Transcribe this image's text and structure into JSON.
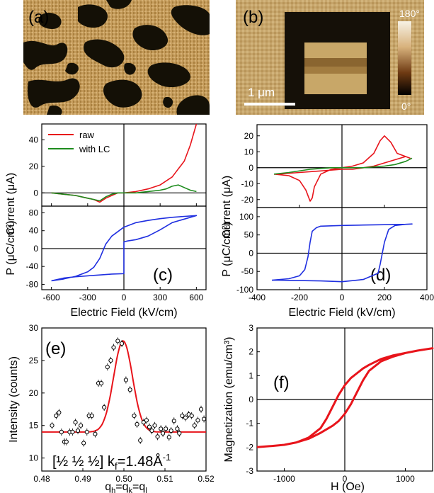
{
  "panels": {
    "a": {
      "label": "(a)"
    },
    "b": {
      "label": "(b)",
      "scalebar": "1 μm",
      "colorbar_max": "180°",
      "colorbar_min": "0°"
    },
    "c": {
      "label": "(c)"
    },
    "d": {
      "label": "(d)"
    },
    "e": {
      "label": "(e)"
    },
    "f": {
      "label": "(f)"
    }
  },
  "chart_data": [
    {
      "panel": "c-top",
      "type": "line",
      "ylabel": "Current (μA)",
      "x_ticks": [
        -600,
        -300,
        0,
        300,
        600
      ],
      "y_ticks": [
        0,
        20,
        40
      ],
      "xlim": [
        -680,
        680
      ],
      "ylim": [
        -10,
        52
      ],
      "colors": {
        "raw": "#e8141b",
        "with LC": "#1e8c1e"
      },
      "series": [
        {
          "name": "raw",
          "x": [
            -600,
            -500,
            -400,
            -300,
            -250,
            -200,
            -150,
            -100,
            -50,
            0,
            50,
            100,
            200,
            300,
            400,
            500,
            550,
            600
          ],
          "y": [
            0,
            -1,
            -2,
            -4,
            -5,
            -7,
            -4,
            -2,
            0,
            0,
            0.5,
            1,
            3,
            6,
            12,
            24,
            36,
            52
          ]
        },
        {
          "name": "with LC",
          "x": [
            -600,
            -500,
            -400,
            -300,
            -250,
            -200,
            -150,
            -100,
            -50,
            0,
            100,
            200,
            300,
            350,
            400,
            450,
            500,
            550,
            600
          ],
          "y": [
            0,
            -1,
            -2,
            -4,
            -5,
            -6,
            -3,
            -1,
            0,
            0,
            0,
            1,
            2,
            3,
            5,
            6,
            4,
            2,
            1
          ]
        }
      ]
    },
    {
      "panel": "c-bottom",
      "type": "line",
      "ylabel": "P (μC/cm²)",
      "xlabel": "Electric Field (kV/cm)",
      "x_ticks": [
        -600,
        -300,
        0,
        300,
        600
      ],
      "y_ticks": [
        -80,
        -40,
        0,
        40,
        80
      ],
      "xlim": [
        -680,
        680
      ],
      "ylim": [
        -92,
        95
      ],
      "colors": {
        "loop": "#1f2fe0"
      },
      "series": [
        {
          "name": "",
          "x": [
            -600,
            -500,
            -400,
            -300,
            -250,
            -200,
            -150,
            -100,
            0,
            100,
            200,
            300,
            400,
            500,
            600,
            500,
            400,
            300,
            200,
            100,
            30,
            0,
            0,
            -100,
            -200,
            -300,
            -400,
            -500,
            -600
          ],
          "y": [
            -72,
            -68,
            -62,
            -52,
            -42,
            -22,
            10,
            28,
            48,
            58,
            63,
            67,
            70,
            72,
            74,
            66,
            58,
            42,
            28,
            20,
            17,
            15,
            -56,
            -57,
            -59,
            -61,
            -63,
            -66,
            -72
          ]
        }
      ]
    },
    {
      "panel": "d-top",
      "type": "line",
      "ylabel": "Current (μA)",
      "x_ticks": [
        -400,
        -200,
        0,
        200,
        400
      ],
      "y_ticks": [
        -20,
        -10,
        0,
        10,
        20
      ],
      "xlim": [
        -400,
        400
      ],
      "ylim": [
        -25,
        27
      ],
      "colors": {
        "red": "#e8141b",
        "green": "#1e8c1e"
      },
      "series": [
        {
          "name": "",
          "x": [
            -320,
            -250,
            -200,
            -170,
            -150,
            -140,
            -130,
            -100,
            -50,
            0,
            50,
            100,
            150,
            180,
            200,
            230,
            260,
            300,
            320,
            300,
            250,
            200,
            150,
            100,
            50,
            0,
            -100,
            -200,
            -300,
            -320
          ],
          "y": [
            -4,
            -5,
            -8,
            -14,
            -21,
            -19,
            -12,
            -4,
            -1,
            0,
            1,
            3,
            9,
            17,
            20,
            16,
            9,
            7,
            6,
            7,
            5,
            3,
            1,
            0,
            -1,
            -1,
            -2,
            -3,
            -4,
            -4
          ]
        },
        {
          "name": "",
          "x": [
            -320,
            -250,
            -150,
            -50,
            0,
            100,
            200,
            250,
            300,
            330
          ],
          "y": [
            -4,
            -3,
            -1,
            0,
            0,
            0,
            1,
            2,
            4,
            6
          ]
        }
      ]
    },
    {
      "panel": "d-bottom",
      "type": "line",
      "ylabel": "P (μC/cm²)",
      "xlabel": "Electric Field (kV/cm)",
      "x_ticks": [
        -400,
        -200,
        0,
        200,
        400
      ],
      "y_ticks": [
        -100,
        -50,
        0,
        50,
        100
      ],
      "xlim": [
        -400,
        400
      ],
      "ylim": [
        -100,
        125
      ],
      "colors": {
        "loop": "#1f2fe0"
      },
      "series": [
        {
          "name": "",
          "x": [
            -330,
            -250,
            -200,
            -175,
            -160,
            -150,
            -140,
            -120,
            -100,
            0,
            100,
            200,
            300,
            330,
            300,
            250,
            220,
            200,
            190,
            180,
            170,
            100,
            0,
            -100,
            -200,
            -300,
            -330
          ],
          "y": [
            -74,
            -70,
            -62,
            -45,
            -10,
            30,
            60,
            70,
            74,
            76,
            77,
            78,
            79,
            80,
            79,
            76,
            65,
            30,
            0,
            -30,
            -55,
            -72,
            -78,
            -76,
            -75,
            -74,
            -74
          ]
        }
      ]
    },
    {
      "panel": "e",
      "type": "scatter",
      "ylabel": "Intensity (counts)",
      "xlabel": "q_h=q_k=q_l",
      "x_tick_labels": [
        "0.48",
        "0.49",
        "0.50",
        "0.51",
        "0.52"
      ],
      "y_tick_labels": [
        "10",
        "15",
        "20",
        "25",
        "30"
      ],
      "annotation": "[½ ½ ½] k",
      "annotation_sub": "f",
      "annotation_rest": "=1.48Å",
      "annotation_sup": "-1",
      "xlim": [
        0.48,
        0.52
      ],
      "ylim": [
        8,
        30
      ],
      "colors": {
        "fit": "#e8141b",
        "points": "#000000"
      },
      "points": {
        "x": [
          0.4825,
          0.4835,
          0.4842,
          0.4848,
          0.4855,
          0.486,
          0.4868,
          0.4875,
          0.4882,
          0.4888,
          0.4895,
          0.4902,
          0.491,
          0.4915,
          0.4922,
          0.493,
          0.4938,
          0.4945,
          0.4952,
          0.496,
          0.4968,
          0.4975,
          0.4985,
          0.4995,
          0.5005,
          0.5015,
          0.5025,
          0.5032,
          0.504,
          0.5048,
          0.5055,
          0.5062,
          0.5068,
          0.5075,
          0.5082,
          0.509,
          0.5095,
          0.5102,
          0.511,
          0.5115,
          0.5122,
          0.513,
          0.5135,
          0.5142,
          0.515,
          0.5158,
          0.5165,
          0.5172,
          0.518,
          0.5188,
          0.5195
        ],
        "y": [
          15,
          16.5,
          17,
          14,
          12.5,
          12.5,
          14,
          14,
          15.5,
          14.2,
          15,
          12.3,
          14,
          16.5,
          16.5,
          13.7,
          21.5,
          21.5,
          17.8,
          24,
          25,
          27,
          28,
          27.6,
          22,
          20.5,
          16.5,
          15.2,
          12.7,
          15.5,
          15.8,
          14.8,
          14.2,
          15,
          13.3,
          14.5,
          13.8,
          14.5,
          13.2,
          14.2,
          15.7,
          14.5,
          13.8,
          16.5,
          16.2,
          16.7,
          16.5,
          15,
          15.8,
          17.5,
          16
        ]
      },
      "fit": {
        "baseline": 14,
        "amplitude": 14,
        "center": 0.4998,
        "sigma": 0.0023
      }
    },
    {
      "panel": "f",
      "type": "line",
      "ylabel": "Magnetization (emu/cm³)",
      "xlabel": "H (Oe)",
      "x_ticks": [
        -1000,
        0,
        1000
      ],
      "y_ticks": [
        -3,
        -2,
        -1,
        0,
        1,
        2,
        3
      ],
      "xlim": [
        -1450,
        1450
      ],
      "ylim": [
        -3,
        3
      ],
      "colors": {
        "loop": "#e8141b"
      },
      "series": [
        {
          "name": "",
          "x": [
            -1450,
            -1200,
            -1000,
            -800,
            -600,
            -400,
            -300,
            -200,
            -100,
            0,
            100,
            200,
            300,
            400,
            600,
            800,
            1000,
            1200,
            1450,
            1200,
            1000,
            800,
            600,
            400,
            300,
            200,
            100,
            0,
            -100,
            -200,
            -300,
            -400,
            -600,
            -800,
            -1000,
            -1200,
            -1450
          ],
          "y": [
            -2.0,
            -1.95,
            -1.9,
            -1.8,
            -1.65,
            -1.4,
            -1.25,
            -1.1,
            -0.9,
            -0.6,
            -0.2,
            0.3,
            0.8,
            1.2,
            1.6,
            1.8,
            1.95,
            2.05,
            2.15,
            2.05,
            1.95,
            1.85,
            1.7,
            1.45,
            1.3,
            1.1,
            0.9,
            0.6,
            0.2,
            -0.3,
            -0.8,
            -1.2,
            -1.6,
            -1.8,
            -1.9,
            -1.95,
            -2.0
          ]
        }
      ]
    }
  ]
}
